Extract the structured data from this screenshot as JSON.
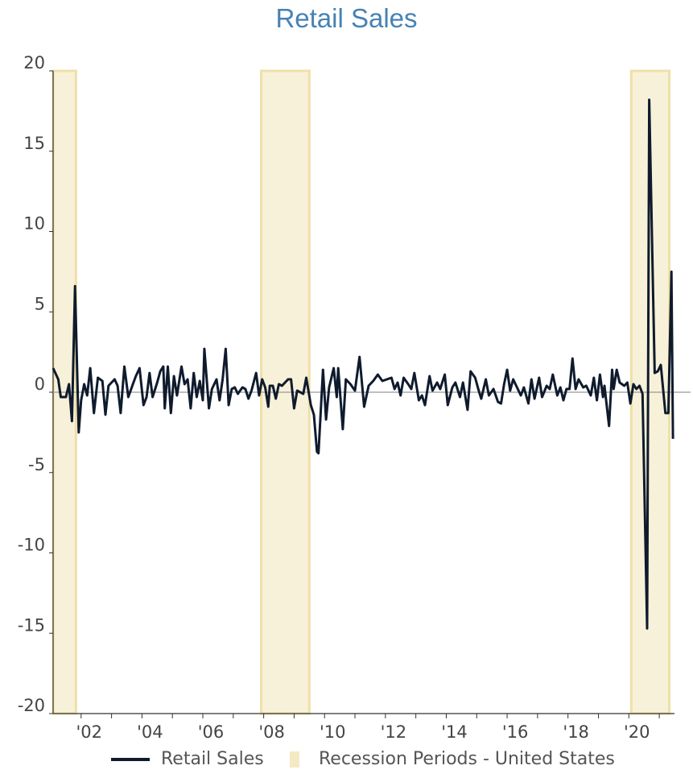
{
  "chart_data": {
    "type": "line",
    "title": "Retail Sales",
    "xlabel": "",
    "ylabel": "",
    "ylim": [
      -20,
      20
    ],
    "xlim": [
      2001.08,
      2021.5
    ],
    "y_ticks": [
      20,
      15,
      10,
      5,
      0,
      -5,
      -10,
      -15,
      -20
    ],
    "x_tick_labels": [
      {
        "value": 2002,
        "label": "'02"
      },
      {
        "value": 2004,
        "label": "'04"
      },
      {
        "value": 2006,
        "label": "'06"
      },
      {
        "value": 2008,
        "label": "'08"
      },
      {
        "value": 2010,
        "label": "'10"
      },
      {
        "value": 2012,
        "label": "'12"
      },
      {
        "value": 2014,
        "label": "'14"
      },
      {
        "value": 2016,
        "label": "'16"
      },
      {
        "value": 2018,
        "label": "'18"
      },
      {
        "value": 2020,
        "label": "'20"
      }
    ],
    "recessions": [
      {
        "start": 2001.08,
        "end": 2001.83
      },
      {
        "start": 2007.92,
        "end": 2009.5
      },
      {
        "start": 2020.08,
        "end": 2021.33
      }
    ],
    "series": [
      {
        "name": "Retail Sales",
        "color": "#0f1b2d",
        "points": [
          [
            2001.08,
            1.5
          ],
          [
            2001.25,
            0.8
          ],
          [
            2001.33,
            -0.3
          ],
          [
            2001.5,
            -0.3
          ],
          [
            2001.6,
            0.5
          ],
          [
            2001.7,
            -1.8
          ],
          [
            2001.8,
            6.6
          ],
          [
            2001.92,
            -2.5
          ],
          [
            2002.0,
            -0.5
          ],
          [
            2002.1,
            0.5
          ],
          [
            2002.2,
            -0.2
          ],
          [
            2002.3,
            1.5
          ],
          [
            2002.42,
            -1.3
          ],
          [
            2002.55,
            0.9
          ],
          [
            2002.7,
            0.7
          ],
          [
            2002.8,
            -1.4
          ],
          [
            2002.9,
            0.4
          ],
          [
            2003.0,
            0.6
          ],
          [
            2003.1,
            0.8
          ],
          [
            2003.2,
            0.4
          ],
          [
            2003.3,
            -1.3
          ],
          [
            2003.42,
            1.6
          ],
          [
            2003.55,
            -0.3
          ],
          [
            2003.7,
            0.5
          ],
          [
            2003.8,
            1.0
          ],
          [
            2003.92,
            1.5
          ],
          [
            2004.05,
            -0.8
          ],
          [
            2004.15,
            -0.3
          ],
          [
            2004.25,
            1.2
          ],
          [
            2004.35,
            -0.3
          ],
          [
            2004.5,
            0.6
          ],
          [
            2004.6,
            1.3
          ],
          [
            2004.7,
            1.6
          ],
          [
            2004.75,
            -1.0
          ],
          [
            2004.85,
            1.6
          ],
          [
            2004.95,
            -1.3
          ],
          [
            2005.05,
            1.0
          ],
          [
            2005.15,
            -0.2
          ],
          [
            2005.3,
            1.6
          ],
          [
            2005.4,
            0.5
          ],
          [
            2005.5,
            0.8
          ],
          [
            2005.6,
            -1.0
          ],
          [
            2005.7,
            1.2
          ],
          [
            2005.8,
            -0.3
          ],
          [
            2005.9,
            0.7
          ],
          [
            2006.0,
            -0.5
          ],
          [
            2006.05,
            2.7
          ],
          [
            2006.2,
            -1.0
          ],
          [
            2006.3,
            0.2
          ],
          [
            2006.45,
            0.8
          ],
          [
            2006.55,
            -0.5
          ],
          [
            2006.65,
            0.8
          ],
          [
            2006.75,
            2.7
          ],
          [
            2006.85,
            -0.8
          ],
          [
            2006.95,
            0.2
          ],
          [
            2007.05,
            0.3
          ],
          [
            2007.15,
            -0.1
          ],
          [
            2007.3,
            0.3
          ],
          [
            2007.4,
            0.2
          ],
          [
            2007.5,
            -0.4
          ],
          [
            2007.6,
            0.1
          ],
          [
            2007.75,
            1.2
          ],
          [
            2007.85,
            -0.2
          ],
          [
            2007.95,
            0.8
          ],
          [
            2008.05,
            0.3
          ],
          [
            2008.15,
            -0.9
          ],
          [
            2008.2,
            0.4
          ],
          [
            2008.3,
            0.4
          ],
          [
            2008.4,
            -0.4
          ],
          [
            2008.5,
            0.5
          ],
          [
            2008.6,
            0.4
          ],
          [
            2008.8,
            0.8
          ],
          [
            2008.9,
            0.8
          ],
          [
            2009.0,
            -1.0
          ],
          [
            2009.1,
            0.1
          ],
          [
            2009.3,
            -0.1
          ],
          [
            2009.4,
            0.9
          ],
          [
            2009.55,
            -0.8
          ],
          [
            2009.65,
            -1.4
          ],
          [
            2009.75,
            -3.7
          ],
          [
            2009.8,
            -3.8
          ],
          [
            2009.95,
            1.4
          ],
          [
            2010.05,
            -1.7
          ],
          [
            2010.15,
            0.3
          ],
          [
            2010.3,
            1.5
          ],
          [
            2010.4,
            -0.3
          ],
          [
            2010.45,
            1.5
          ],
          [
            2010.6,
            -2.3
          ],
          [
            2010.7,
            0.8
          ],
          [
            2010.85,
            0.5
          ],
          [
            2011.0,
            0.1
          ],
          [
            2011.15,
            2.2
          ],
          [
            2011.3,
            -0.9
          ],
          [
            2011.45,
            0.4
          ],
          [
            2011.6,
            0.7
          ],
          [
            2011.75,
            1.1
          ],
          [
            2011.9,
            0.7
          ],
          [
            2012.05,
            0.8
          ],
          [
            2012.2,
            0.9
          ],
          [
            2012.3,
            0.2
          ],
          [
            2012.4,
            0.6
          ],
          [
            2012.5,
            -0.2
          ],
          [
            2012.6,
            0.9
          ],
          [
            2012.75,
            0.5
          ],
          [
            2012.85,
            0.2
          ],
          [
            2012.95,
            1.2
          ],
          [
            2013.1,
            -0.5
          ],
          [
            2013.2,
            -0.2
          ],
          [
            2013.3,
            -0.8
          ],
          [
            2013.45,
            1.0
          ],
          [
            2013.55,
            0.1
          ],
          [
            2013.7,
            0.6
          ],
          [
            2013.8,
            0.2
          ],
          [
            2013.95,
            1.1
          ],
          [
            2014.05,
            -0.8
          ],
          [
            2014.2,
            0.3
          ],
          [
            2014.3,
            0.6
          ],
          [
            2014.45,
            -0.3
          ],
          [
            2014.55,
            0.6
          ],
          [
            2014.7,
            -1.1
          ],
          [
            2014.8,
            1.3
          ],
          [
            2014.95,
            0.9
          ],
          [
            2015.05,
            0.2
          ],
          [
            2015.15,
            -0.4
          ],
          [
            2015.3,
            0.8
          ],
          [
            2015.4,
            -0.2
          ],
          [
            2015.55,
            0.2
          ],
          [
            2015.7,
            -0.6
          ],
          [
            2015.8,
            -0.7
          ],
          [
            2015.9,
            0.5
          ],
          [
            2016.0,
            1.4
          ],
          [
            2016.1,
            0.1
          ],
          [
            2016.2,
            0.8
          ],
          [
            2016.3,
            0.4
          ],
          [
            2016.45,
            -0.2
          ],
          [
            2016.55,
            0.3
          ],
          [
            2016.7,
            -0.7
          ],
          [
            2016.8,
            0.8
          ],
          [
            2016.9,
            -0.4
          ],
          [
            2017.05,
            0.9
          ],
          [
            2017.15,
            -0.3
          ],
          [
            2017.3,
            0.4
          ],
          [
            2017.4,
            0.2
          ],
          [
            2017.5,
            1.1
          ],
          [
            2017.65,
            -0.2
          ],
          [
            2017.75,
            0.3
          ],
          [
            2017.85,
            -0.5
          ],
          [
            2017.95,
            0.2
          ],
          [
            2018.05,
            0.2
          ],
          [
            2018.15,
            2.1
          ],
          [
            2018.25,
            0.2
          ],
          [
            2018.35,
            0.8
          ],
          [
            2018.5,
            0.3
          ],
          [
            2018.6,
            0.4
          ],
          [
            2018.75,
            -0.2
          ],
          [
            2018.85,
            0.9
          ],
          [
            2018.95,
            -0.5
          ],
          [
            2019.05,
            1.1
          ],
          [
            2019.15,
            -0.3
          ],
          [
            2019.2,
            0.4
          ],
          [
            2019.35,
            -2.1
          ],
          [
            2019.45,
            1.4
          ],
          [
            2019.5,
            0.2
          ],
          [
            2019.6,
            1.4
          ],
          [
            2019.7,
            0.6
          ],
          [
            2019.85,
            0.4
          ],
          [
            2019.95,
            0.6
          ],
          [
            2020.05,
            -0.7
          ],
          [
            2020.15,
            0.5
          ],
          [
            2020.25,
            0.2
          ],
          [
            2020.35,
            0.4
          ],
          [
            2020.45,
            -0.1
          ],
          [
            2020.6,
            -14.7
          ],
          [
            2020.67,
            18.2
          ],
          [
            2020.85,
            1.2
          ],
          [
            2020.95,
            1.3
          ],
          [
            2021.05,
            1.7
          ],
          [
            2021.2,
            -1.3
          ],
          [
            2021.3,
            -1.3
          ],
          [
            2021.4,
            7.5
          ],
          [
            2021.45,
            -2.9
          ]
        ]
      }
    ],
    "legend": [
      {
        "label": "Retail Sales",
        "kind": "line",
        "color": "#0f1b2d"
      },
      {
        "label": "Recession Periods - United States",
        "kind": "box",
        "color": "#f5e9c5"
      }
    ],
    "legend_position": "bottom",
    "grid": false
  }
}
